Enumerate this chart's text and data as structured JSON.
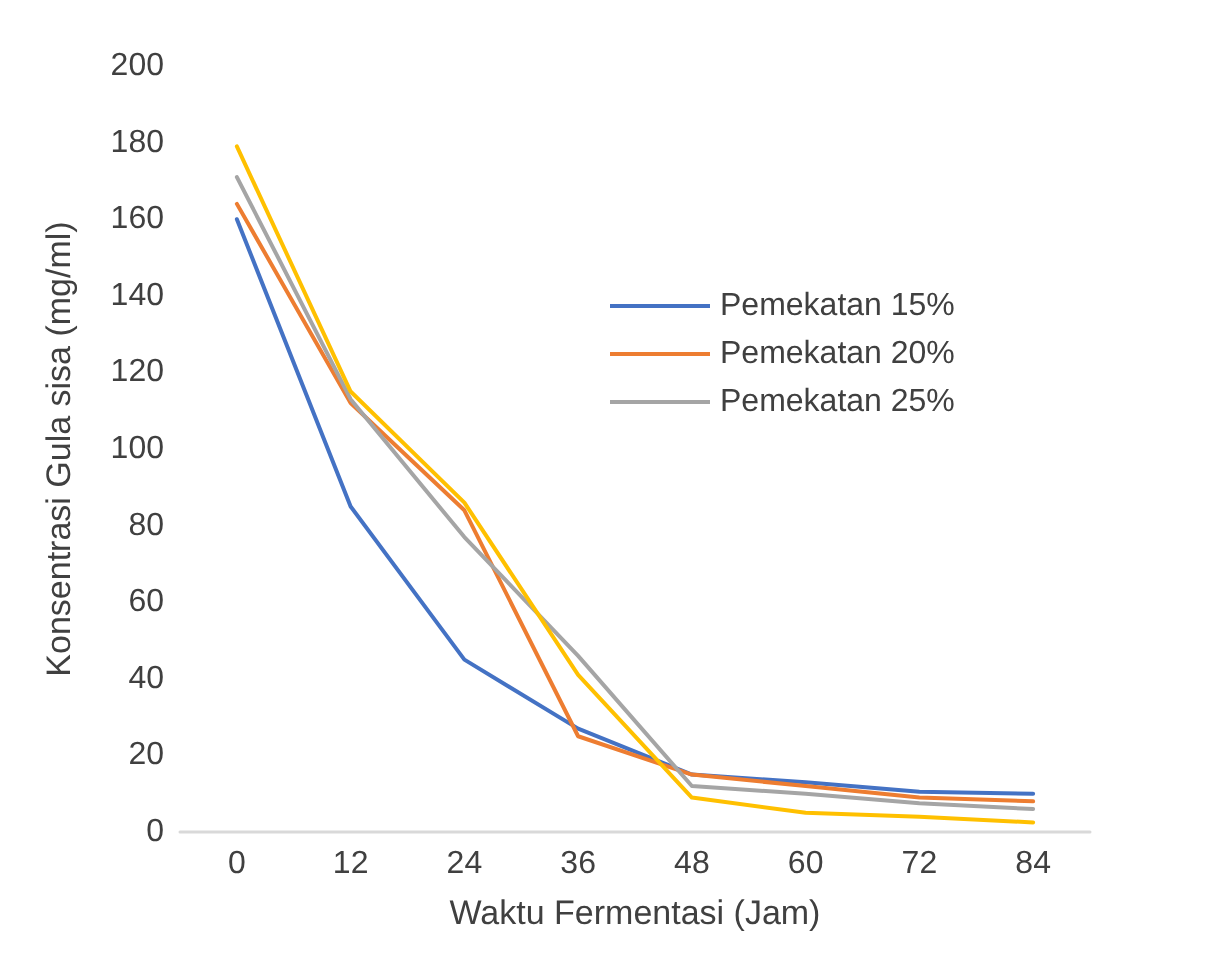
{
  "chart_data": {
    "type": "line",
    "xlabel": "Waktu Fermentasi (Jam)",
    "ylabel": "Konsentrasi Gula sisa (mg/ml)",
    "categories": [
      "0",
      "12",
      "24",
      "36",
      "48",
      "60",
      "72",
      "84"
    ],
    "series": [
      {
        "name": "Pemekatan 15%",
        "color": "#4472c4",
        "values": [
          160,
          85,
          45,
          27,
          15,
          13,
          10.5,
          10
        ]
      },
      {
        "name": "Pemekatan 20%",
        "color": "#ed7d31",
        "values": [
          164,
          112,
          84,
          25,
          15,
          12,
          9,
          8
        ]
      },
      {
        "name": "Pemekatan 25%",
        "color": "#a5a5a5",
        "values": [
          171,
          113,
          77,
          46,
          12,
          10,
          7.5,
          6
        ]
      },
      {
        "color": "#ffc000",
        "values": [
          179,
          115,
          86,
          41,
          9,
          5,
          4,
          2.5
        ]
      }
    ],
    "ylim": [
      0,
      200
    ],
    "yticks": [
      0,
      20,
      40,
      60,
      80,
      100,
      120,
      140,
      160,
      180,
      200
    ],
    "grid": false,
    "legend": "right",
    "marker": "none",
    "line_style": "solid"
  }
}
